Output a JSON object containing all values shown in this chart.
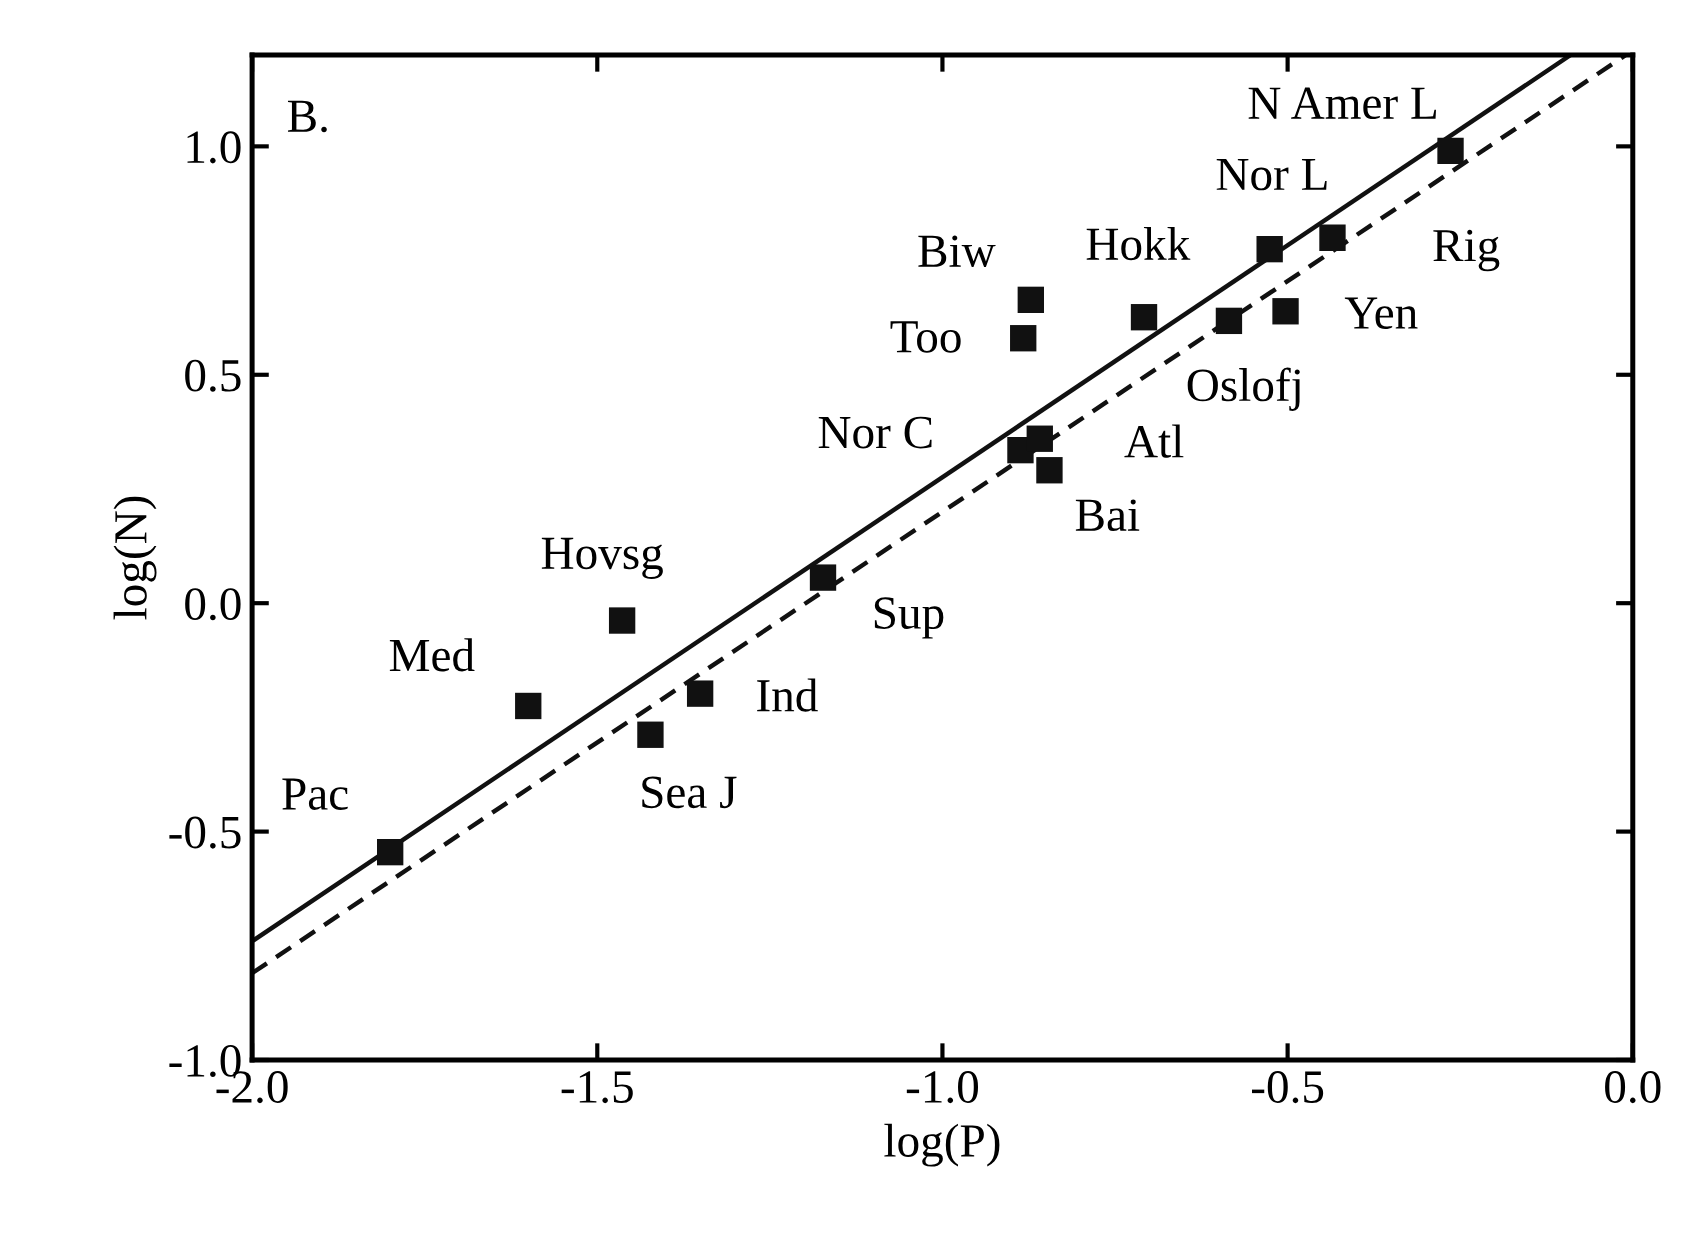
{
  "chart_data": {
    "type": "scatter",
    "xlabel": "log(P)",
    "ylabel": "log(N)",
    "xlim": [
      -2.0,
      0.0
    ],
    "ylim": [
      -1.0,
      1.2
    ],
    "xticks": [
      {
        "value": -2.0,
        "label": "-2.0"
      },
      {
        "value": -1.5,
        "label": "-1.5"
      },
      {
        "value": -1.0,
        "label": "-1.0"
      },
      {
        "value": -0.5,
        "label": "-0.5"
      },
      {
        "value": 0.0,
        "label": "0.0"
      }
    ],
    "yticks": [
      {
        "value": -1.0,
        "label": "-1.0"
      },
      {
        "value": -0.5,
        "label": "-0.5"
      },
      {
        "value": 0.0,
        "label": "0.0"
      },
      {
        "value": 0.5,
        "label": "0.5"
      },
      {
        "value": 1.0,
        "label": "1.0"
      }
    ],
    "grid": false,
    "legend": false,
    "series": [
      {
        "marker": "square",
        "color": "#111111",
        "x": [
          -1.8,
          -1.6,
          -1.464,
          -1.423,
          -1.351,
          -1.173,
          -0.887,
          -0.859,
          -0.845,
          -0.883,
          -0.872,
          -0.708,
          -0.585,
          -0.526,
          -0.503,
          -0.435,
          -0.264
        ],
        "values": [
          -0.545,
          -0.225,
          -0.038,
          -0.288,
          -0.198,
          0.056,
          0.335,
          0.36,
          0.291,
          0.58,
          0.664,
          0.626,
          0.618,
          0.775,
          0.639,
          0.8,
          0.99
        ]
      },
      {
        "type": "line",
        "line_style": "solid",
        "marker": "none",
        "color": "#111111",
        "x": [
          -2.0,
          -0.09
        ],
        "values": [
          -0.74,
          1.2
        ]
      },
      {
        "type": "line",
        "line_style": "dashed",
        "marker": "none",
        "color": "#111111",
        "x": [
          -2.0,
          -0.01
        ],
        "values": [
          -0.81,
          1.2
        ]
      }
    ],
    "annotations": [
      "B.",
      {
        "text": "Pac",
        "x": -1.8,
        "y": -0.545
      },
      {
        "text": "Med",
        "x": -1.6,
        "y": -0.225
      },
      {
        "text": "Hovsg",
        "x": -1.464,
        "y": -0.038
      },
      {
        "text": "Sea J",
        "x": -1.423,
        "y": -0.288
      },
      {
        "text": "Ind",
        "x": -1.351,
        "y": -0.198
      },
      {
        "text": "Sup",
        "x": -1.173,
        "y": 0.056
      },
      {
        "text": "Nor C",
        "x": -0.887,
        "y": 0.335
      },
      {
        "text": "Atl",
        "x": -0.859,
        "y": 0.36
      },
      {
        "text": "Bai",
        "x": -0.845,
        "y": 0.291
      },
      {
        "text": "Too",
        "x": -0.883,
        "y": 0.58
      },
      {
        "text": "Biw",
        "x": -0.872,
        "y": 0.664
      },
      {
        "text": "Hokk",
        "x": -0.708,
        "y": 0.626
      },
      {
        "text": "Oslofj",
        "x": -0.585,
        "y": 0.618
      },
      {
        "text": "Nor L",
        "x": -0.526,
        "y": 0.775
      },
      {
        "text": "Yen",
        "x": -0.503,
        "y": 0.639
      },
      {
        "text": "Rig",
        "x": -0.435,
        "y": 0.8
      },
      {
        "text": "N Amer L",
        "x": -0.264,
        "y": 0.99
      }
    ]
  }
}
